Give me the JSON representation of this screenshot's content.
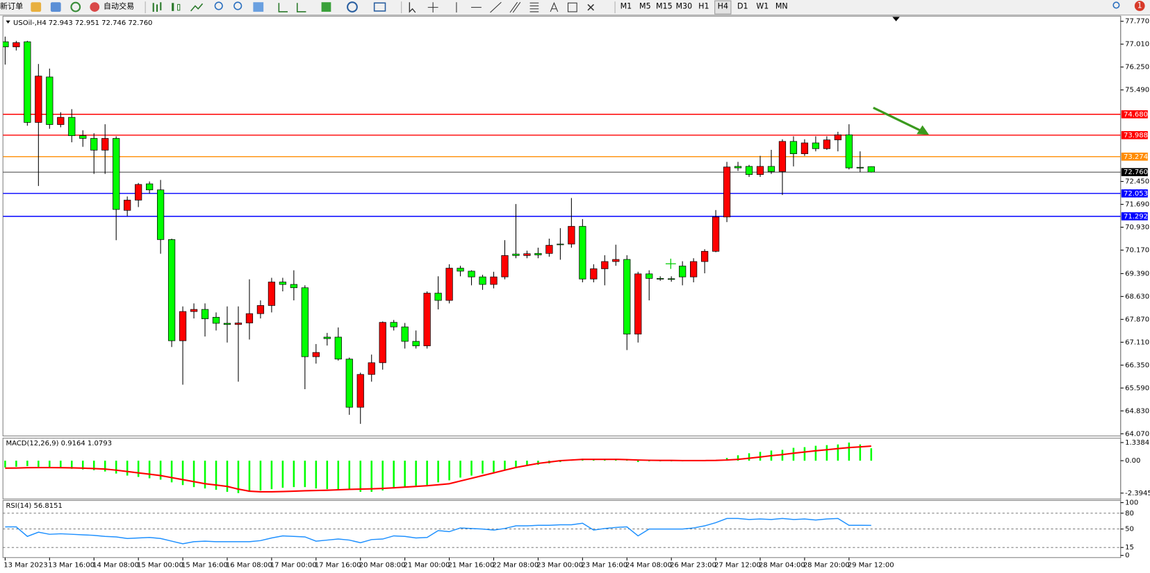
{
  "toolbar": {
    "new_order": "新订单",
    "auto_trading": "自动交易",
    "timeframes": [
      "M1",
      "M5",
      "M15",
      "M30",
      "H1",
      "H4",
      "D1",
      "W1",
      "MN"
    ],
    "notification_count": 1
  },
  "chart_data": [
    {
      "type": "candlestick",
      "title": "USOil-,H4",
      "subtitle": "72.943 72.951 72.746 72.760",
      "categories": [
        "13 Mar 2023",
        null,
        null,
        null,
        "13 Mar 16:00",
        null,
        null,
        null,
        "14 Mar 08:00",
        null,
        null,
        null,
        "15 Mar 00:00",
        null,
        null,
        null,
        "15 Mar 16:00",
        null,
        null,
        null,
        "16 Mar 08:00",
        null,
        null,
        null,
        "17 Mar 00:00",
        null,
        null,
        null,
        "17 Mar 16:00",
        null,
        null,
        null,
        "20 Mar 08:00",
        null,
        null,
        null,
        "21 Mar 00:00",
        null,
        null,
        null,
        "21 Mar 16:00",
        null,
        null,
        null,
        "22 Mar 08:00",
        null,
        null,
        null,
        "23 Mar 00:00",
        null,
        null,
        null,
        "23 Mar 16:00",
        null,
        null,
        null,
        "24 Mar 08:00",
        null,
        null,
        null,
        "26 Mar 23:00",
        null,
        null,
        null,
        "27 Mar 12:00",
        null,
        null,
        null,
        "28 Mar 04:00",
        null,
        null,
        null,
        "28 Mar 20:00",
        null,
        null,
        null,
        "29 Mar 12:00",
        null,
        null
      ],
      "open": [
        77.09,
        76.92,
        77.09,
        74.41,
        75.92,
        74.34,
        74.58,
        73.97,
        73.88,
        73.49,
        73.88,
        71.49,
        71.83,
        72.37,
        72.17,
        70.52,
        67.16,
        68.13,
        68.2,
        67.94,
        67.74,
        67.7,
        67.75,
        68.06,
        68.33,
        69.11,
        69.03,
        68.92,
        66.63,
        67.28,
        67.28,
        66.55,
        64.95,
        66.04,
        66.43,
        67.77,
        67.62,
        67.14,
        66.99,
        68.74,
        68.5,
        69.57,
        69.47,
        69.28,
        69.03,
        69.28,
        70.04,
        69.99,
        70.06,
        70.06,
        70.37,
        70.37,
        70.96,
        69.21,
        69.55,
        69.79,
        69.86,
        67.38,
        69.38,
        69.23,
        69.22,
        69.64,
        69.28,
        69.79,
        70.13,
        71.27,
        72.95,
        72.95,
        72.68,
        72.95,
        72.78,
        73.78,
        73.37,
        73.73,
        73.54,
        73.83,
        74.0,
        72.92,
        72.943
      ],
      "high": [
        77.26,
        77.12,
        77.12,
        76.35,
        76.2,
        74.75,
        74.85,
        74.15,
        74.05,
        74.35,
        73.95,
        71.95,
        72.4,
        72.45,
        72.5,
        70.55,
        68.3,
        68.4,
        68.4,
        68.1,
        68.3,
        68.3,
        69.2,
        68.5,
        69.25,
        69.25,
        69.5,
        69.0,
        67.05,
        67.42,
        67.6,
        66.6,
        66.1,
        66.7,
        67.8,
        67.85,
        67.75,
        67.5,
        68.8,
        69.3,
        69.7,
        69.65,
        69.5,
        69.35,
        69.45,
        70.5,
        71.7,
        70.15,
        70.25,
        70.55,
        70.9,
        71.9,
        71.2,
        69.7,
        70.0,
        70.35,
        70.0,
        69.45,
        69.5,
        69.3,
        69.3,
        69.8,
        69.9,
        70.2,
        71.5,
        73.1,
        73.1,
        73.0,
        73.3,
        73.5,
        73.85,
        73.95,
        73.85,
        73.95,
        73.95,
        74.1,
        74.35,
        73.45,
        72.951
      ],
      "low": [
        76.33,
        76.8,
        74.3,
        72.3,
        74.2,
        74.25,
        73.75,
        73.6,
        72.7,
        72.7,
        70.5,
        71.3,
        71.6,
        72.05,
        70.05,
        66.95,
        65.7,
        67.9,
        67.3,
        67.5,
        67.1,
        65.8,
        67.2,
        67.9,
        68.1,
        68.8,
        68.5,
        65.55,
        66.4,
        67.0,
        66.5,
        64.7,
        64.4,
        65.8,
        66.2,
        67.5,
        66.9,
        66.9,
        66.9,
        68.2,
        68.4,
        69.3,
        69.0,
        68.85,
        68.9,
        69.2,
        69.9,
        69.9,
        69.9,
        69.95,
        69.85,
        70.25,
        69.1,
        69.1,
        69.0,
        69.65,
        66.85,
        67.1,
        68.5,
        69.15,
        69.12,
        69.0,
        69.1,
        69.4,
        70.1,
        71.1,
        72.8,
        72.6,
        72.6,
        72.7,
        72.0,
        72.95,
        73.3,
        73.45,
        73.5,
        73.45,
        72.85,
        72.75,
        72.746
      ],
      "close": [
        76.92,
        77.06,
        74.41,
        75.95,
        74.34,
        74.58,
        73.97,
        73.88,
        73.49,
        73.88,
        71.52,
        71.83,
        72.35,
        72.17,
        70.52,
        67.16,
        68.13,
        68.2,
        67.89,
        67.74,
        67.7,
        67.75,
        68.06,
        68.33,
        69.11,
        69.03,
        68.92,
        66.63,
        66.77,
        67.23,
        66.55,
        64.95,
        66.04,
        66.43,
        67.77,
        67.62,
        67.14,
        66.99,
        68.74,
        68.5,
        69.57,
        69.47,
        69.28,
        69.03,
        69.28,
        69.99,
        69.99,
        70.05,
        70.01,
        70.33,
        70.35,
        70.96,
        69.21,
        69.55,
        69.79,
        69.86,
        67.38,
        69.38,
        69.23,
        69.21,
        69.2,
        69.28,
        69.79,
        70.13,
        71.27,
        72.93,
        72.9,
        72.68,
        72.95,
        72.78,
        73.78,
        73.37,
        73.73,
        73.54,
        73.83,
        74.0,
        72.9,
        72.9,
        72.76
      ],
      "up_color": "#ff0000",
      "down_color": "#00ff00",
      "ylim": [
        64.07,
        77.77
      ],
      "yticks": [
        {
          "value": 77.77,
          "label": "77.770"
        },
        {
          "value": 77.01,
          "label": "77.010"
        },
        {
          "value": 76.25,
          "label": "76.250"
        },
        {
          "value": 75.49,
          "label": "75.490"
        },
        {
          "value": 72.45,
          "label": "72.450"
        },
        {
          "value": 71.69,
          "label": "71.690"
        },
        {
          "value": 70.93,
          "label": "70.930"
        },
        {
          "value": 70.17,
          "label": "70.170"
        },
        {
          "value": 69.39,
          "label": "69.390"
        },
        {
          "value": 68.63,
          "label": "68.630"
        },
        {
          "value": 67.87,
          "label": "67.870"
        },
        {
          "value": 67.11,
          "label": "67.110"
        },
        {
          "value": 66.35,
          "label": "66.350"
        },
        {
          "value": 65.59,
          "label": "65.590"
        },
        {
          "value": 64.83,
          "label": "64.830"
        },
        {
          "value": 64.07,
          "label": "64.070"
        }
      ],
      "levels": [
        {
          "value": 74.68,
          "label": "74.680",
          "color": "#ff0000"
        },
        {
          "value": 73.988,
          "label": "73.988",
          "color": "#ff0000"
        },
        {
          "value": 73.274,
          "label": "73.274",
          "color": "#ff8c00"
        },
        {
          "value": 72.053,
          "label": "72.053",
          "color": "#0000ff"
        },
        {
          "value": 71.292,
          "label": "71.292",
          "color": "#0000ff"
        }
      ],
      "price_line": {
        "value": 72.76,
        "label": "72.760",
        "color": "#000000"
      }
    },
    {
      "type": "macd",
      "title": "MACD(12,26,9) 0.9164 1.0793",
      "series": [
        {
          "type": "bar",
          "color": "#00ff00",
          "values": [
            -0.5,
            -0.45,
            -0.4,
            -0.45,
            -0.5,
            -0.55,
            -0.6,
            -0.65,
            -0.7,
            -0.8,
            -0.95,
            -1.1,
            -1.2,
            -1.3,
            -1.4,
            -1.6,
            -1.8,
            -1.95,
            -2.05,
            -2.15,
            -2.3,
            -2.3945,
            -2.3,
            -2.2,
            -2.1,
            -2.0,
            -1.95,
            -1.95,
            -2.05,
            -2.1,
            -2.1,
            -2.15,
            -2.3,
            -2.3,
            -2.2,
            -2.05,
            -1.95,
            -1.85,
            -1.8,
            -1.6,
            -1.45,
            -1.25,
            -1.1,
            -0.95,
            -0.85,
            -0.7,
            -0.55,
            -0.4,
            -0.3,
            -0.2,
            -0.1,
            0.05,
            0.15,
            0.1,
            0.08,
            0.07,
            0.05,
            -0.1,
            -0.05,
            -0.05,
            -0.05,
            -0.05,
            -0.03,
            0.0,
            0.05,
            0.2,
            0.4,
            0.55,
            0.65,
            0.75,
            0.8,
            0.95,
            1.0,
            1.1,
            1.15,
            1.2,
            1.3384,
            1.2,
            0.9164
          ]
        },
        {
          "type": "line",
          "color": "#ff0000",
          "values": [
            -0.55,
            -0.54,
            -0.52,
            -0.51,
            -0.51,
            -0.52,
            -0.53,
            -0.55,
            -0.58,
            -0.62,
            -0.7,
            -0.8,
            -0.9,
            -1.0,
            -1.1,
            -1.25,
            -1.4,
            -1.55,
            -1.7,
            -1.8,
            -1.9,
            -2.1,
            -2.25,
            -2.3,
            -2.3,
            -2.28,
            -2.25,
            -2.22,
            -2.2,
            -2.18,
            -2.15,
            -2.12,
            -2.1,
            -2.08,
            -2.05,
            -2.0,
            -1.95,
            -1.9,
            -1.85,
            -1.78,
            -1.7,
            -1.5,
            -1.3,
            -1.1,
            -0.9,
            -0.7,
            -0.5,
            -0.35,
            -0.2,
            -0.1,
            0.0,
            0.05,
            0.1,
            0.1,
            0.1,
            0.1,
            0.08,
            0.05,
            0.03,
            0.02,
            0.02,
            0.01,
            0.01,
            0.01,
            0.02,
            0.05,
            0.1,
            0.18,
            0.27,
            0.37,
            0.45,
            0.55,
            0.64,
            0.73,
            0.81,
            0.89,
            0.97,
            1.02,
            1.0793
          ]
        }
      ],
      "ylim": [
        -2.3945,
        1.3384
      ],
      "yticks": [
        1.3384,
        {
          "value": 0,
          "label": "0.00"
        },
        -2.3945
      ]
    },
    {
      "type": "rsi",
      "title": "RSI(14) 56.8151",
      "series": [
        {
          "type": "line",
          "color": "#1e90ff",
          "values": [
            54,
            54,
            36,
            44,
            40,
            41,
            40,
            39,
            38,
            36,
            35,
            32,
            33,
            34,
            32,
            27,
            22,
            26,
            27,
            26,
            26,
            26,
            26,
            28,
            33,
            37,
            36,
            35,
            27,
            29,
            31,
            29,
            24,
            30,
            31,
            37,
            36,
            33,
            34,
            47,
            45,
            52,
            51,
            50,
            48,
            51,
            56,
            56,
            57,
            57,
            58,
            58,
            61,
            48,
            51,
            53,
            54,
            37,
            50,
            50,
            50,
            50,
            52,
            56,
            62,
            70,
            70,
            68,
            69,
            68,
            70,
            68,
            69,
            67,
            69,
            70,
            57,
            57,
            56.8151
          ]
        }
      ],
      "ylim": [
        0,
        100
      ],
      "yticks": [
        100,
        80,
        50,
        15,
        0
      ],
      "levels": [
        80,
        50,
        15
      ]
    }
  ]
}
